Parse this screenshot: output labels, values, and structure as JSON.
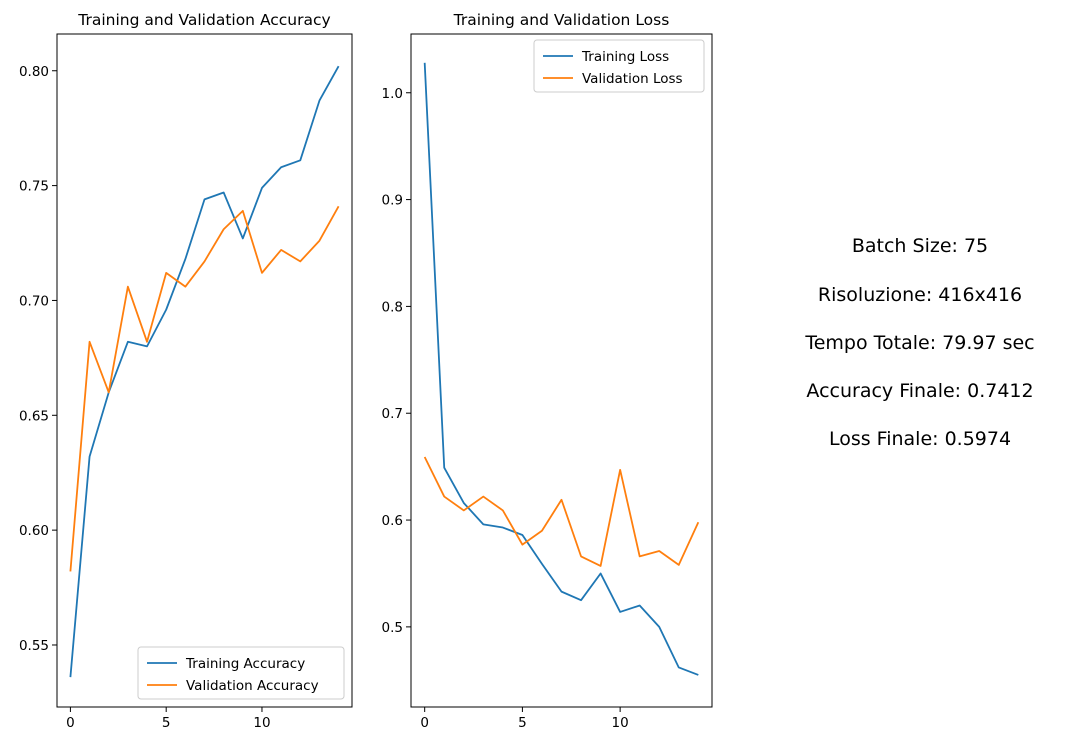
{
  "colors": {
    "training": "#1f77b4",
    "validation": "#ff7f0e"
  },
  "chart_data": [
    {
      "type": "line",
      "title": "Training and Validation Accuracy",
      "xlabel": "",
      "ylabel": "",
      "x": [
        0,
        1,
        2,
        3,
        4,
        5,
        6,
        7,
        8,
        9,
        10,
        11,
        12,
        13,
        14
      ],
      "xlim": [
        -0.7,
        14.7
      ],
      "ylim": [
        0.523,
        0.816
      ],
      "xticks": [
        0,
        5,
        10
      ],
      "yticks": [
        0.55,
        0.6,
        0.65,
        0.7,
        0.75,
        0.8
      ],
      "ytick_labels": [
        "0.55",
        "0.60",
        "0.65",
        "0.70",
        "0.75",
        "0.80"
      ],
      "legend_position": "lower-right",
      "series": [
        {
          "name": "Training Accuracy",
          "color": "#1f77b4",
          "values": [
            0.536,
            0.632,
            0.66,
            0.682,
            0.68,
            0.696,
            0.718,
            0.744,
            0.747,
            0.727,
            0.749,
            0.758,
            0.761,
            0.787,
            0.802
          ]
        },
        {
          "name": "Validation Accuracy",
          "color": "#ff7f0e",
          "values": [
            0.582,
            0.682,
            0.66,
            0.706,
            0.682,
            0.712,
            0.706,
            0.717,
            0.731,
            0.739,
            0.712,
            0.722,
            0.717,
            0.726,
            0.741
          ]
        }
      ]
    },
    {
      "type": "line",
      "title": "Training and Validation Loss",
      "xlabel": "",
      "ylabel": "",
      "x": [
        0,
        1,
        2,
        3,
        4,
        5,
        6,
        7,
        8,
        9,
        10,
        11,
        12,
        13,
        14
      ],
      "xlim": [
        -0.7,
        14.7
      ],
      "ylim": [
        0.425,
        1.055
      ],
      "xticks": [
        0,
        5,
        10
      ],
      "yticks": [
        0.5,
        0.6,
        0.7,
        0.8,
        0.9,
        1.0
      ],
      "ytick_labels": [
        "0.5",
        "0.6",
        "0.7",
        "0.8",
        "0.9",
        "1.0"
      ],
      "legend_position": "upper-right",
      "series": [
        {
          "name": "Training Loss",
          "color": "#1f77b4",
          "values": [
            1.028,
            0.649,
            0.616,
            0.596,
            0.593,
            0.586,
            0.559,
            0.533,
            0.525,
            0.55,
            0.514,
            0.52,
            0.5,
            0.462,
            0.455
          ]
        },
        {
          "name": "Validation Loss",
          "color": "#ff7f0e",
          "values": [
            0.659,
            0.622,
            0.609,
            0.622,
            0.609,
            0.577,
            0.59,
            0.619,
            0.566,
            0.557,
            0.647,
            0.566,
            0.571,
            0.558,
            0.598
          ]
        }
      ]
    }
  ],
  "info": {
    "batch_size": "Batch Size: 75",
    "resolution": "Risoluzione: 416x416",
    "total_time": "Tempo Totale: 79.97 sec",
    "final_accuracy": "Accuracy Finale: 0.7412",
    "final_loss": "Loss Finale: 0.5974"
  }
}
